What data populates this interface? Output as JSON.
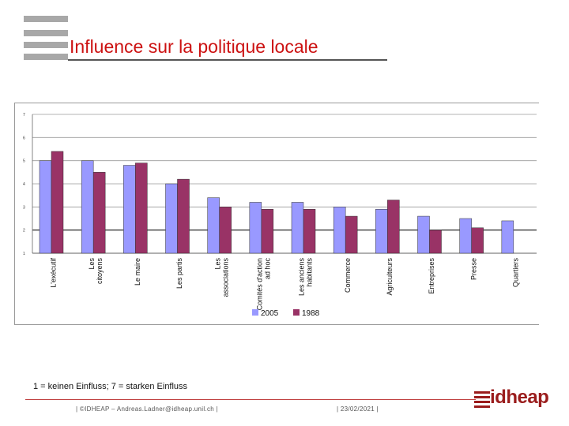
{
  "slide": {
    "title": "Influence sur la politique locale",
    "footnote": "1 = keinen Einfluss; 7 = starken Einfluss",
    "footer_left": "| ©IDHEAP – Andreas.Ladner@idheap.unil.ch |",
    "footer_right": "| 23/02/2021 |",
    "logo_text": "idheap"
  },
  "colors": {
    "title": "#cc1111",
    "series_2005": "#9999ff",
    "series_1988": "#993366"
  },
  "chart_data": {
    "type": "bar",
    "title": "",
    "xlabel": "",
    "ylabel": "",
    "ylim": [
      1,
      7
    ],
    "yticks": [
      "1",
      "2",
      "3",
      "4",
      "5",
      "6",
      "7"
    ],
    "reference_line": 2,
    "categories": [
      "L'exécutif",
      "Les citoyens",
      "Le maire",
      "Les partis",
      "Les associations",
      "Comités d'action ad hoc",
      "Les anciens habitants",
      "Commerce",
      "Agriculteurs",
      "Entreprises",
      "Presse",
      "Quartiers"
    ],
    "series": [
      {
        "name": "2005",
        "values": [
          5.0,
          5.0,
          4.8,
          4.0,
          3.4,
          3.2,
          3.2,
          3.0,
          2.9,
          2.6,
          2.5,
          2.4
        ]
      },
      {
        "name": "1988",
        "values": [
          5.4,
          4.5,
          4.9,
          4.2,
          3.0,
          2.9,
          2.9,
          2.6,
          3.3,
          2.0,
          2.1,
          null
        ]
      }
    ],
    "legend": [
      "2005",
      "1988"
    ]
  }
}
